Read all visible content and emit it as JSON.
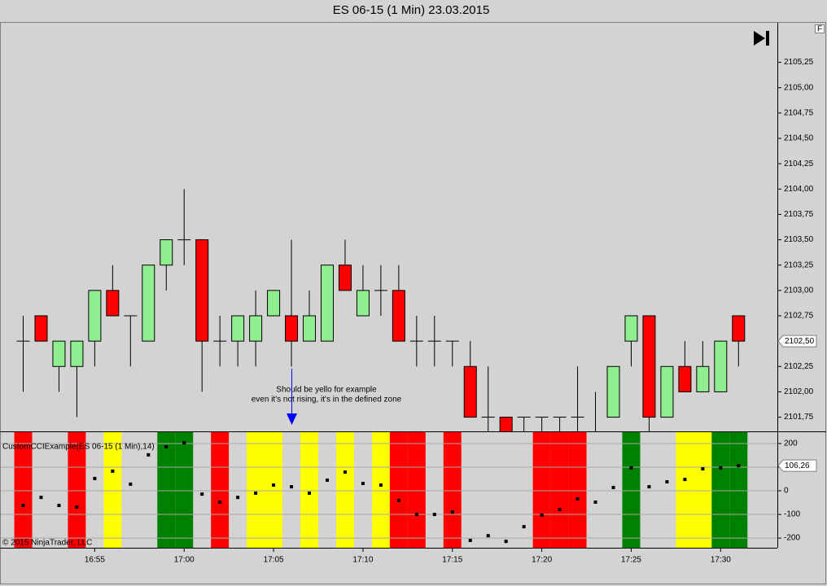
{
  "title": "ES 06-15 (1 Min)  23.03.2015",
  "chart_data": [
    {
      "type": "candlestick",
      "categories": [
        null,
        null,
        null,
        null,
        "16:55",
        null,
        null,
        null,
        null,
        "17:00",
        null,
        null,
        null,
        null,
        "17:05",
        null,
        null,
        null,
        null,
        "17:10",
        null,
        null,
        null,
        null,
        "17:15",
        null,
        null,
        null,
        null,
        "17:20",
        null,
        null,
        null,
        null,
        "17:25",
        null,
        null,
        null,
        null,
        "17:30",
        null
      ],
      "open": [
        2102.5,
        2102.75,
        2102.25,
        2102.25,
        2102.5,
        2103,
        2102.75,
        2102.5,
        2103.25,
        2103.5,
        2103.5,
        2102.5,
        2102.5,
        2102.5,
        2102.75,
        2102.75,
        2102.5,
        2102.5,
        2103.25,
        2102.75,
        2103,
        2103,
        2102.5,
        2102.5,
        2102.5,
        2102.25,
        2101.75,
        2101.75,
        2101.75,
        2101.75,
        2101.75,
        2101.75,
        2101.5,
        2101.75,
        2102.5,
        2102.75,
        2101.75,
        2102.25,
        2102,
        2102,
        2102.75
      ],
      "high": [
        2102.75,
        2102.75,
        2102.5,
        2102.5,
        2103,
        2103.25,
        2102.75,
        2103.25,
        2103.5,
        2104,
        2103.5,
        2102.75,
        2102.75,
        2103,
        2103,
        2103.5,
        2103,
        2103.25,
        2103.5,
        2103.25,
        2103.25,
        2103.25,
        2102.75,
        2102.75,
        2102.5,
        2102.5,
        2102.25,
        2101.75,
        2101.75,
        2101.75,
        2101.75,
        2102.25,
        2102,
        2102.25,
        2102.75,
        2102.75,
        2102.25,
        2102.5,
        2102.5,
        2102.5,
        2102.75
      ],
      "low": [
        2102,
        2102.5,
        2102,
        2101.75,
        2102.25,
        2102.75,
        2102.25,
        2102.5,
        2103,
        2103.25,
        2102,
        2102.25,
        2102.25,
        2102.25,
        2102.75,
        2102.25,
        2102.5,
        2102.5,
        2103,
        2102.75,
        2102.75,
        2102.5,
        2102.25,
        2102.25,
        2102.25,
        2101.75,
        2101.5,
        2101.5,
        2101.5,
        2101.5,
        2101.5,
        2101.5,
        2101.5,
        2101.75,
        2102.25,
        2101.5,
        2101.75,
        2102,
        2102,
        2102,
        2102.25
      ],
      "close": [
        2102.5,
        2102.5,
        2102.5,
        2102.5,
        2103,
        2102.75,
        2102.75,
        2103.25,
        2103.5,
        2103.5,
        2102.5,
        2102.5,
        2102.75,
        2102.75,
        2103,
        2102.5,
        2102.75,
        2103.25,
        2103,
        2103,
        2103,
        2102.5,
        2102.5,
        2102.5,
        2102.5,
        2101.75,
        2101.75,
        2101.5,
        2101.75,
        2101.75,
        2101.75,
        2101.75,
        2101.5,
        2102.25,
        2102.75,
        2101.75,
        2102.25,
        2102,
        2102.25,
        2102.5,
        2102.5
      ],
      "up_color": "#90ee90",
      "down_color": "#ff0000",
      "last_label": "2102,50",
      "ylim": [
        2101.61,
        2105.64
      ],
      "yticks": [
        {
          "value": 2101.75,
          "label": "2101,75"
        },
        {
          "value": 2102,
          "label": "2102,00"
        },
        {
          "value": 2102.25,
          "label": "2102,25"
        },
        {
          "value": 2102.5,
          "label": "2102,50"
        },
        {
          "value": 2102.75,
          "label": "2102,75"
        },
        {
          "value": 2103,
          "label": "2103,00"
        },
        {
          "value": 2103.25,
          "label": "2103,25"
        },
        {
          "value": 2103.5,
          "label": "2103,50"
        },
        {
          "value": 2103.75,
          "label": "2103,75"
        },
        {
          "value": 2104,
          "label": "2104,00"
        },
        {
          "value": 2104.25,
          "label": "2104,25"
        },
        {
          "value": 2104.5,
          "label": "2104,50"
        },
        {
          "value": 2104.75,
          "label": "2104,75"
        },
        {
          "value": 2105,
          "label": "2105,00"
        },
        {
          "value": 2105.25,
          "label": "2105,25"
        }
      ],
      "grid": false,
      "annotations": [
        "Should be yello for example",
        "even it's not rising, it's in the defined zone"
      ],
      "annotation_color": "#0000ff"
    },
    {
      "type": "dots",
      "title": "CustomCCIExample(ES 06-15 (1 Min),14)",
      "values": [
        -62,
        -28,
        -62,
        -69,
        52,
        83,
        28,
        152,
        186,
        203,
        -14,
        -48,
        -28,
        -10,
        24,
        17,
        -10,
        45,
        79,
        31,
        24,
        -41,
        -100,
        -100,
        -90,
        -210,
        -190,
        -214,
        -152,
        -103,
        -79,
        -34,
        -48,
        14,
        97,
        17,
        38,
        48,
        93,
        97,
        106.26
      ],
      "color": "#000000",
      "zones": [
        "#ff0000",
        null,
        null,
        "#ff0000",
        null,
        "#ffff00",
        null,
        null,
        "#008000",
        "#008000",
        null,
        "#ff0000",
        null,
        "#ffff00",
        "#ffff00",
        null,
        "#ffff00",
        null,
        "#ffff00",
        null,
        "#ffff00",
        "#ff0000",
        "#ff0000",
        null,
        "#ff0000",
        null,
        null,
        null,
        null,
        "#ff0000",
        "#ff0000",
        "#ff0000",
        null,
        null,
        "#008000",
        null,
        null,
        "#ffff00",
        "#ffff00",
        "#008000",
        "#008000"
      ],
      "last_label": "106,26",
      "ylim": [
        -241,
        248
      ],
      "yticks": [
        -200,
        -100,
        0,
        100,
        200
      ],
      "grid": true,
      "footer": "© 2015 NinjaTrader, LLC"
    }
  ]
}
